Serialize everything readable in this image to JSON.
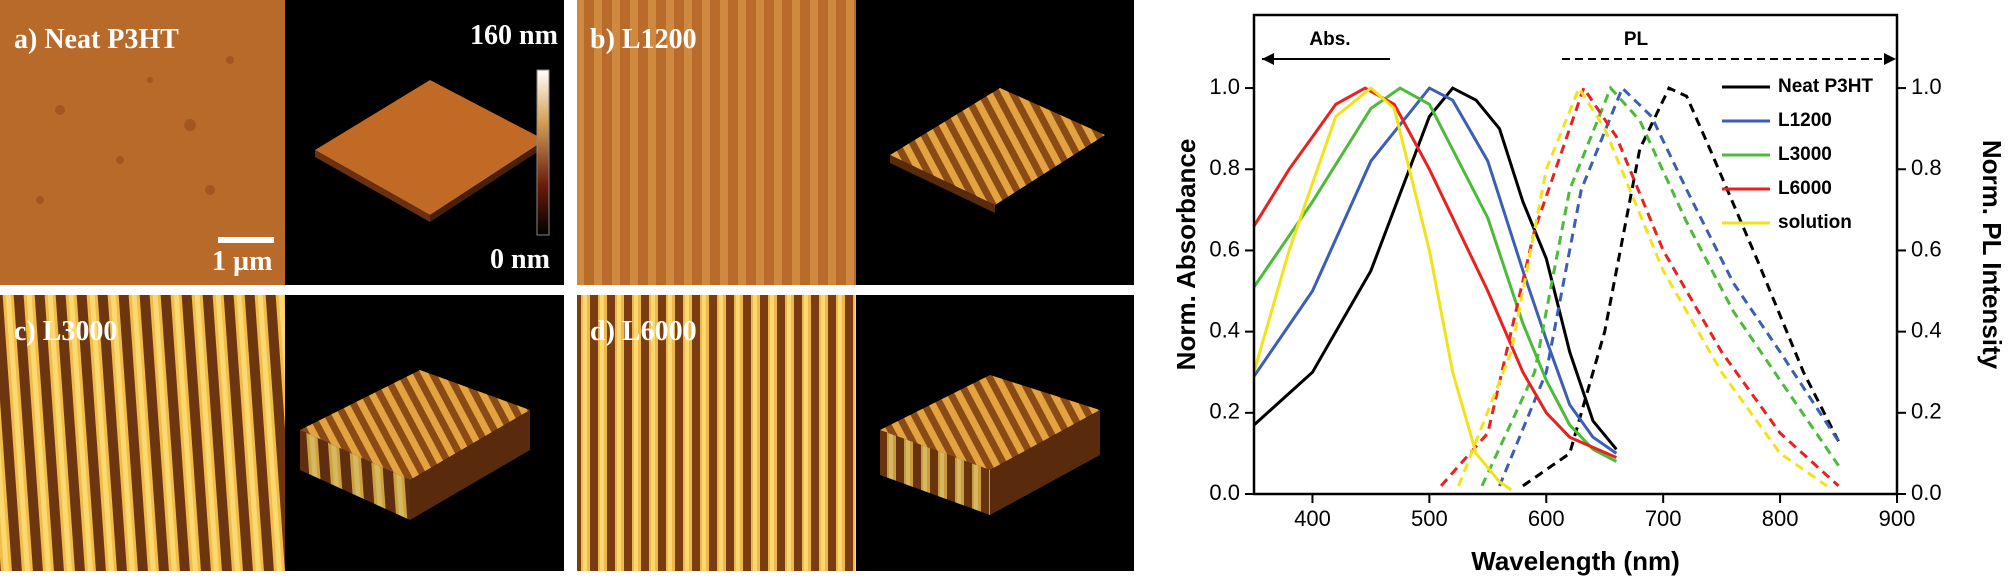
{
  "panels": [
    {
      "label": "a) Neat P3HT"
    },
    {
      "label": "b) L1200"
    },
    {
      "label": "c) L3000"
    },
    {
      "label": "d) L6000"
    }
  ],
  "afm_scale": {
    "max": "160 nm",
    "min": "0 nm",
    "bar": "1 µm"
  },
  "chart_data": {
    "type": "line",
    "xlabel": "Wavelength (nm)",
    "ylabel": "Norm. Absorbance",
    "y2label": "Norm. PL Intensity",
    "annotations": [
      "Abs.",
      "PL"
    ],
    "xlim": [
      350,
      900
    ],
    "xticks": [
      400,
      500,
      600,
      700,
      800,
      900
    ],
    "ylim": [
      0,
      1.18
    ],
    "yticks": [
      {
        "value": 0,
        "label": "0.0"
      },
      {
        "value": 0.2,
        "label": "0.2"
      },
      {
        "value": 0.4,
        "label": "0.4"
      },
      {
        "value": 0.6,
        "label": "0.6"
      },
      {
        "value": 0.8,
        "label": "0.8"
      },
      {
        "value": 1,
        "label": "1.0"
      }
    ],
    "y2lim": [
      0,
      1.18
    ],
    "y2ticks": [
      {
        "value": 0,
        "label": "0.0"
      },
      {
        "value": 0.2,
        "label": "0.2"
      },
      {
        "value": 0.4,
        "label": "0.4"
      },
      {
        "value": 0.6,
        "label": "0.6"
      },
      {
        "value": 0.8,
        "label": "0.8"
      },
      {
        "value": 1,
        "label": "1.0"
      }
    ],
    "legend": "upper right",
    "series": [
      {
        "name": "Neat P3HT",
        "color": "#000000",
        "abs": {
          "x": [
            350,
            400,
            450,
            500,
            520,
            540,
            560,
            580,
            600,
            620,
            640,
            660
          ],
          "values": [
            0.17,
            0.3,
            0.55,
            0.93,
            1.0,
            0.97,
            0.9,
            0.72,
            0.58,
            0.35,
            0.18,
            0.11
          ]
        },
        "pl": {
          "x": [
            580,
            620,
            650,
            680,
            705,
            720,
            740,
            780,
            820,
            850
          ],
          "values": [
            0.02,
            0.1,
            0.4,
            0.85,
            1.0,
            0.98,
            0.85,
            0.58,
            0.3,
            0.13
          ]
        }
      },
      {
        "name": "L1200",
        "color": "#3a5fb5",
        "abs": {
          "x": [
            350,
            400,
            450,
            500,
            520,
            550,
            580,
            600,
            620,
            640,
            660
          ],
          "values": [
            0.29,
            0.5,
            0.82,
            1.0,
            0.97,
            0.82,
            0.55,
            0.38,
            0.22,
            0.14,
            0.1
          ]
        },
        "pl": {
          "x": [
            560,
            600,
            630,
            665,
            690,
            720,
            760,
            800,
            850
          ],
          "values": [
            0.02,
            0.3,
            0.75,
            1.0,
            0.93,
            0.75,
            0.52,
            0.35,
            0.13
          ]
        }
      },
      {
        "name": "L3000",
        "color": "#4cbb3a",
        "abs": {
          "x": [
            350,
            400,
            450,
            475,
            500,
            550,
            580,
            600,
            620,
            640,
            660
          ],
          "values": [
            0.51,
            0.72,
            0.95,
            1.0,
            0.96,
            0.68,
            0.42,
            0.28,
            0.17,
            0.11,
            0.08
          ]
        },
        "pl": {
          "x": [
            545,
            590,
            620,
            655,
            680,
            720,
            760,
            800,
            850
          ],
          "values": [
            0.02,
            0.3,
            0.75,
            1.0,
            0.92,
            0.67,
            0.45,
            0.28,
            0.07
          ]
        }
      },
      {
        "name": "L6000",
        "color": "#e8231f",
        "abs": {
          "x": [
            350,
            380,
            420,
            445,
            470,
            500,
            550,
            580,
            600,
            620,
            660
          ],
          "values": [
            0.66,
            0.8,
            0.96,
            1.0,
            0.96,
            0.8,
            0.5,
            0.3,
            0.2,
            0.14,
            0.09
          ]
        },
        "pl": {
          "x": [
            510,
            550,
            590,
            632,
            660,
            700,
            750,
            800,
            850
          ],
          "values": [
            0.02,
            0.15,
            0.65,
            1.0,
            0.88,
            0.6,
            0.35,
            0.15,
            0.02
          ]
        }
      },
      {
        "name": "solution",
        "color": "#f2e21a",
        "abs": {
          "x": [
            350,
            380,
            420,
            450,
            470,
            500,
            520,
            540,
            560,
            570
          ],
          "values": [
            0.3,
            0.6,
            0.93,
            1.0,
            0.95,
            0.6,
            0.3,
            0.1,
            0.03,
            0.01
          ]
        },
        "pl": {
          "x": [
            525,
            570,
            600,
            628,
            650,
            700,
            750,
            800,
            840
          ],
          "values": [
            0.02,
            0.35,
            0.8,
            1.0,
            0.9,
            0.55,
            0.3,
            0.1,
            0.02
          ]
        }
      }
    ]
  }
}
